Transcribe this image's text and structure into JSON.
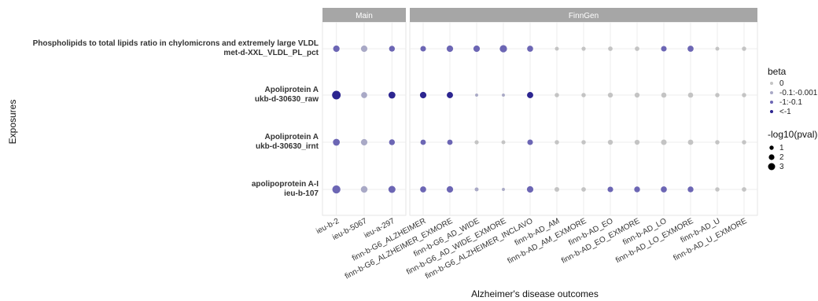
{
  "chart_data": {
    "type": "scatter",
    "title": "",
    "xlabel": "Alzheimer's disease outcomes",
    "ylabel": "Exposures",
    "facets": [
      {
        "name": "Main",
        "outcomes": [
          "ieu-b-2",
          "ieu-b-5067",
          "ieu-a-297"
        ]
      },
      {
        "name": "FinnGen",
        "outcomes": [
          "finn-b-G6_ALZHEIMER",
          "finn-b-G6_ALZHEIMER_EXMORE",
          "finn-b-G6_AD_WIDE",
          "finn-b-G6_AD_WIDE_EXMORE",
          "finn-b-G6_ALZHEIMER_INCLAVO",
          "finn-b-AD_AM",
          "finn-b-AD_AM_EXMORE",
          "finn-b-AD_EO",
          "finn-b-AD_EO_EXMORE",
          "finn-b-AD_LO",
          "finn-b-AD_LO_EXMORE",
          "finn-b-AD_U",
          "finn-b-AD_U_EXMORE"
        ]
      }
    ],
    "exposures": [
      {
        "line1": "Phospholipids to total lipids ratio in chylomicrons and extremely large VLDL",
        "line2": "met-d-XXL_VLDL_PL_pct"
      },
      {
        "line1": "Apoliprotein A",
        "line2": "ukb-d-30630_raw"
      },
      {
        "line1": "Apoliprotein A",
        "line2": "ukb-d-30630_irnt"
      },
      {
        "line1": "apolipoprotein A-I",
        "line2": "ieu-b-107"
      }
    ],
    "legend": {
      "color_title": "beta",
      "color_levels": [
        {
          "label": "0",
          "color": "#c4c4c4"
        },
        {
          "label": "-0.1:-0.001",
          "color": "#a9a9c6"
        },
        {
          "label": "-1:-0.1",
          "color": "#6c66b4"
        },
        {
          "label": "<-1",
          "color": "#2c2590"
        }
      ],
      "size_title": "-log10(pval)",
      "size_levels": [
        {
          "label": "1",
          "value": 1
        },
        {
          "label": "2",
          "value": 2
        },
        {
          "label": "3",
          "value": 3
        }
      ]
    },
    "points": [
      {
        "outcome": "ieu-b-2",
        "exposure": 0,
        "beta_level": 2,
        "size": 2.0
      },
      {
        "outcome": "ieu-b-5067",
        "exposure": 0,
        "beta_level": 1,
        "size": 2.0
      },
      {
        "outcome": "ieu-a-297",
        "exposure": 0,
        "beta_level": 2,
        "size": 1.7
      },
      {
        "outcome": "finn-b-G6_ALZHEIMER",
        "exposure": 0,
        "beta_level": 2,
        "size": 1.6
      },
      {
        "outcome": "finn-b-G6_ALZHEIMER_EXMORE",
        "exposure": 0,
        "beta_level": 2,
        "size": 2.0
      },
      {
        "outcome": "finn-b-G6_AD_WIDE",
        "exposure": 0,
        "beta_level": 2,
        "size": 2.0
      },
      {
        "outcome": "finn-b-G6_AD_WIDE_EXMORE",
        "exposure": 0,
        "beta_level": 2,
        "size": 2.4
      },
      {
        "outcome": "finn-b-G6_ALZHEIMER_INCLAVO",
        "exposure": 0,
        "beta_level": 2,
        "size": 1.8
      },
      {
        "outcome": "finn-b-AD_AM",
        "exposure": 0,
        "beta_level": 0,
        "size": 0.8
      },
      {
        "outcome": "finn-b-AD_AM_EXMORE",
        "exposure": 0,
        "beta_level": 0,
        "size": 0.9
      },
      {
        "outcome": "finn-b-AD_EO",
        "exposure": 0,
        "beta_level": 0,
        "size": 1.1
      },
      {
        "outcome": "finn-b-AD_EO_EXMORE",
        "exposure": 0,
        "beta_level": 0,
        "size": 1.1
      },
      {
        "outcome": "finn-b-AD_LO",
        "exposure": 0,
        "beta_level": 2,
        "size": 1.6
      },
      {
        "outcome": "finn-b-AD_LO_EXMORE",
        "exposure": 0,
        "beta_level": 2,
        "size": 1.8
      },
      {
        "outcome": "finn-b-AD_U",
        "exposure": 0,
        "beta_level": 0,
        "size": 0.8
      },
      {
        "outcome": "finn-b-AD_U_EXMORE",
        "exposure": 0,
        "beta_level": 0,
        "size": 1.0
      },
      {
        "outcome": "ieu-b-2",
        "exposure": 1,
        "beta_level": 3,
        "size": 3.0
      },
      {
        "outcome": "ieu-b-5067",
        "exposure": 1,
        "beta_level": 1,
        "size": 1.8
      },
      {
        "outcome": "ieu-a-297",
        "exposure": 1,
        "beta_level": 3,
        "size": 2.2
      },
      {
        "outcome": "finn-b-G6_ALZHEIMER",
        "exposure": 1,
        "beta_level": 3,
        "size": 2.0
      },
      {
        "outcome": "finn-b-G6_ALZHEIMER_EXMORE",
        "exposure": 1,
        "beta_level": 3,
        "size": 1.9
      },
      {
        "outcome": "finn-b-G6_AD_WIDE",
        "exposure": 1,
        "beta_level": 1,
        "size": 0.4
      },
      {
        "outcome": "finn-b-G6_AD_WIDE_EXMORE",
        "exposure": 1,
        "beta_level": 1,
        "size": 0.4
      },
      {
        "outcome": "finn-b-G6_ALZHEIMER_INCLAVO",
        "exposure": 1,
        "beta_level": 3,
        "size": 1.9
      },
      {
        "outcome": "finn-b-AD_AM",
        "exposure": 1,
        "beta_level": 0,
        "size": 1.0
      },
      {
        "outcome": "finn-b-AD_AM_EXMORE",
        "exposure": 1,
        "beta_level": 0,
        "size": 1.0
      },
      {
        "outcome": "finn-b-AD_EO",
        "exposure": 1,
        "beta_level": 0,
        "size": 1.3
      },
      {
        "outcome": "finn-b-AD_EO_EXMORE",
        "exposure": 1,
        "beta_level": 0,
        "size": 1.3
      },
      {
        "outcome": "finn-b-AD_LO",
        "exposure": 1,
        "beta_level": 0,
        "size": 1.4
      },
      {
        "outcome": "finn-b-AD_LO_EXMORE",
        "exposure": 1,
        "beta_level": 0,
        "size": 1.4
      },
      {
        "outcome": "finn-b-AD_U",
        "exposure": 1,
        "beta_level": 0,
        "size": 1.0
      },
      {
        "outcome": "finn-b-AD_U_EXMORE",
        "exposure": 1,
        "beta_level": 0,
        "size": 1.0
      },
      {
        "outcome": "ieu-b-2",
        "exposure": 2,
        "beta_level": 2,
        "size": 2.2
      },
      {
        "outcome": "ieu-b-5067",
        "exposure": 2,
        "beta_level": 1,
        "size": 2.0
      },
      {
        "outcome": "ieu-a-297",
        "exposure": 2,
        "beta_level": 2,
        "size": 1.7
      },
      {
        "outcome": "finn-b-G6_ALZHEIMER",
        "exposure": 2,
        "beta_level": 2,
        "size": 1.5
      },
      {
        "outcome": "finn-b-G6_ALZHEIMER_EXMORE",
        "exposure": 2,
        "beta_level": 2,
        "size": 1.5
      },
      {
        "outcome": "finn-b-G6_AD_WIDE",
        "exposure": 2,
        "beta_level": 0,
        "size": 0.9
      },
      {
        "outcome": "finn-b-G6_AD_WIDE_EXMORE",
        "exposure": 2,
        "beta_level": 0,
        "size": 0.8
      },
      {
        "outcome": "finn-b-G6_ALZHEIMER_INCLAVO",
        "exposure": 2,
        "beta_level": 2,
        "size": 1.6
      },
      {
        "outcome": "finn-b-AD_AM",
        "exposure": 2,
        "beta_level": 0,
        "size": 1.0
      },
      {
        "outcome": "finn-b-AD_AM_EXMORE",
        "exposure": 2,
        "beta_level": 0,
        "size": 1.0
      },
      {
        "outcome": "finn-b-AD_EO",
        "exposure": 2,
        "beta_level": 0,
        "size": 1.3
      },
      {
        "outcome": "finn-b-AD_EO_EXMORE",
        "exposure": 2,
        "beta_level": 0,
        "size": 1.3
      },
      {
        "outcome": "finn-b-AD_LO",
        "exposure": 2,
        "beta_level": 0,
        "size": 1.6
      },
      {
        "outcome": "finn-b-AD_LO_EXMORE",
        "exposure": 2,
        "beta_level": 0,
        "size": 1.5
      },
      {
        "outcome": "finn-b-AD_U",
        "exposure": 2,
        "beta_level": 0,
        "size": 1.0
      },
      {
        "outcome": "finn-b-AD_U_EXMORE",
        "exposure": 2,
        "beta_level": 0,
        "size": 1.0
      },
      {
        "outcome": "ieu-b-2",
        "exposure": 3,
        "beta_level": 2,
        "size": 2.8
      },
      {
        "outcome": "ieu-b-5067",
        "exposure": 3,
        "beta_level": 1,
        "size": 2.1
      },
      {
        "outcome": "ieu-a-297",
        "exposure": 3,
        "beta_level": 2,
        "size": 2.3
      },
      {
        "outcome": "finn-b-G6_ALZHEIMER",
        "exposure": 3,
        "beta_level": 2,
        "size": 1.8
      },
      {
        "outcome": "finn-b-G6_ALZHEIMER_EXMORE",
        "exposure": 3,
        "beta_level": 2,
        "size": 2.0
      },
      {
        "outcome": "finn-b-G6_AD_WIDE",
        "exposure": 3,
        "beta_level": 1,
        "size": 0.8
      },
      {
        "outcome": "finn-b-G6_AD_WIDE_EXMORE",
        "exposure": 3,
        "beta_level": 1,
        "size": 0.4
      },
      {
        "outcome": "finn-b-G6_ALZHEIMER_INCLAVO",
        "exposure": 3,
        "beta_level": 2,
        "size": 2.0
      },
      {
        "outcome": "finn-b-AD_AM",
        "exposure": 3,
        "beta_level": 0,
        "size": 1.2
      },
      {
        "outcome": "finn-b-AD_AM_EXMORE",
        "exposure": 3,
        "beta_level": 0,
        "size": 1.1
      },
      {
        "outcome": "finn-b-AD_EO",
        "exposure": 3,
        "beta_level": 2,
        "size": 1.6
      },
      {
        "outcome": "finn-b-AD_EO_EXMORE",
        "exposure": 3,
        "beta_level": 2,
        "size": 1.7
      },
      {
        "outcome": "finn-b-AD_LO",
        "exposure": 3,
        "beta_level": 2,
        "size": 1.8
      },
      {
        "outcome": "finn-b-AD_LO_EXMORE",
        "exposure": 3,
        "beta_level": 2,
        "size": 1.7
      },
      {
        "outcome": "finn-b-AD_U",
        "exposure": 3,
        "beta_level": 0,
        "size": 1.0
      },
      {
        "outcome": "finn-b-AD_U_EXMORE",
        "exposure": 3,
        "beta_level": 0,
        "size": 1.1
      }
    ],
    "grid": true,
    "legend_position": "right"
  }
}
